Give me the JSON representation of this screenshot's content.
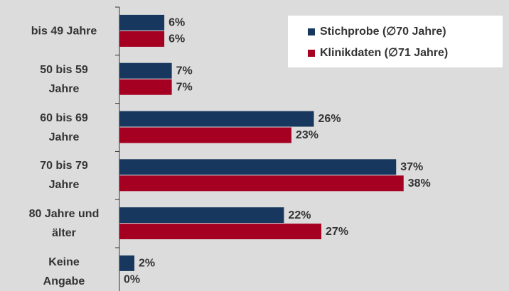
{
  "chart_data": {
    "type": "bar",
    "orientation": "horizontal",
    "categories": [
      "bis 49 Jahre",
      "50 bis 59\nJahre",
      "60 bis 69\nJahre",
      "70 bis 79\nJahre",
      "80 Jahre und\nälter",
      "Keine\nAngabe"
    ],
    "series": [
      {
        "name": "Stichprobe (∅70 Jahre)",
        "color": "#17375e",
        "values": [
          6,
          7,
          26,
          37,
          22,
          2
        ],
        "value_labels": [
          "6%",
          "7%",
          "26%",
          "37%",
          "22%",
          "2%"
        ]
      },
      {
        "name": "Klinikdaten (∅71 Jahre)",
        "color": "#a50021",
        "values": [
          6,
          7,
          23,
          38,
          27,
          0
        ],
        "value_labels": [
          "6%",
          "7%",
          "23%",
          "38%",
          "27%",
          "0%"
        ]
      }
    ]
  }
}
